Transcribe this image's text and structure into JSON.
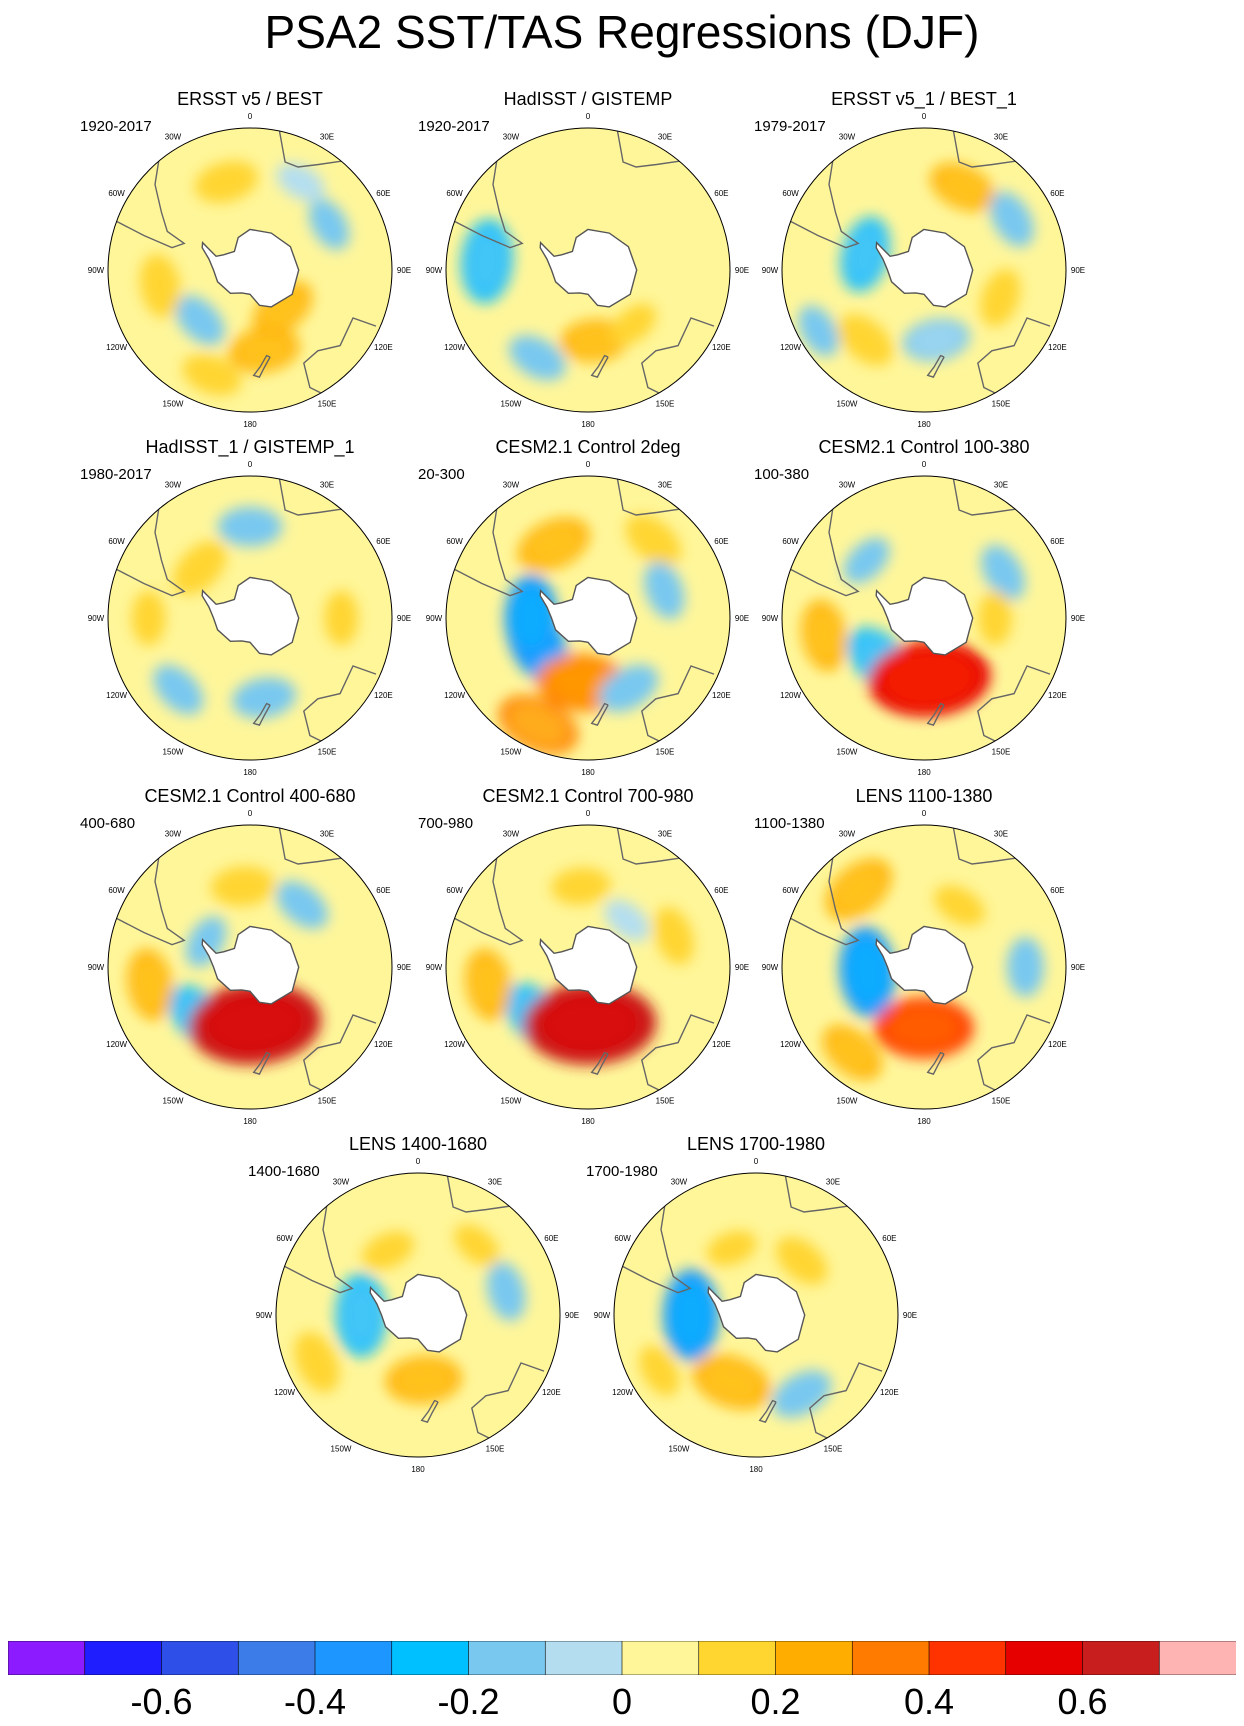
{
  "figure_title": "PSA2 SST/TAS Regressions (DJF)",
  "map_labels": {
    "longitudes": [
      "0",
      "30E",
      "60E",
      "90E",
      "120E",
      "150E",
      "180",
      "150W",
      "120W",
      "90W",
      "60W",
      "30W"
    ]
  },
  "colorbar": {
    "colors": [
      "#8c1cff",
      "#1e1eff",
      "#2e50e8",
      "#3c7ce8",
      "#1e96ff",
      "#00c0ff",
      "#78c8f0",
      "#b4def0",
      "#fff69a",
      "#ffd530",
      "#ffae00",
      "#ff7b00",
      "#ff3300",
      "#e60000",
      "#c81e1e",
      "#ffb4b4"
    ],
    "levels": [
      -0.7,
      -0.6,
      -0.5,
      -0.4,
      -0.3,
      -0.2,
      -0.1,
      0,
      0.1,
      0.2,
      0.3,
      0.4,
      0.5,
      0.6,
      0.7
    ],
    "tick_labels": [
      "-0.6",
      "-0.4",
      "-0.2",
      "0",
      "0.2",
      "0.4",
      "0.6"
    ],
    "tick_values": [
      -0.6,
      -0.4,
      -0.2,
      0,
      0.2,
      0.4,
      0.6
    ]
  },
  "chart_data": [
    {
      "type": "heatmap",
      "title": "ERSST v5 / BEST",
      "period": "1920-2017",
      "anomalies": [
        {
          "lon": -15,
          "lat": -45,
          "value": 0.18
        },
        {
          "lon": -135,
          "lat": -55,
          "value": -0.15
        },
        {
          "lon": -100,
          "lat": -45,
          "value": 0.18
        },
        {
          "lon": 170,
          "lat": -50,
          "value": 0.22
        },
        {
          "lon": 140,
          "lat": -65,
          "value": 0.2
        },
        {
          "lon": -160,
          "lat": -35,
          "value": 0.16
        },
        {
          "lon": 60,
          "lat": -45,
          "value": -0.12
        },
        {
          "lon": 30,
          "lat": -40,
          "value": -0.1
        }
      ]
    },
    {
      "type": "heatmap",
      "title": "HadISST / GISTEMP",
      "period": "1920-2017",
      "anomalies": [
        {
          "lon": -85,
          "lat": -40,
          "value": -0.3
        },
        {
          "lon": 175,
          "lat": -55,
          "value": 0.2
        },
        {
          "lon": -150,
          "lat": -40,
          "value": -0.16
        },
        {
          "lon": 140,
          "lat": -55,
          "value": 0.1
        },
        {
          "lon": 0,
          "lat": -60,
          "value": 0.08
        },
        {
          "lon": 90,
          "lat": -40,
          "value": 0.08
        }
      ]
    },
    {
      "type": "heatmap",
      "title": "ERSST v5_1 / BEST_1",
      "period": "1979-2017",
      "anomalies": [
        {
          "lon": 25,
          "lat": -45,
          "value": 0.2
        },
        {
          "lon": 60,
          "lat": -40,
          "value": -0.15
        },
        {
          "lon": -75,
          "lat": -60,
          "value": -0.25
        },
        {
          "lon": 170,
          "lat": -55,
          "value": -0.2
        },
        {
          "lon": -140,
          "lat": -45,
          "value": 0.18
        },
        {
          "lon": 110,
          "lat": -50,
          "value": 0.15
        },
        {
          "lon": -120,
          "lat": -30,
          "value": -0.12
        }
      ]
    },
    {
      "type": "heatmap",
      "title": "HadISST_1 / GISTEMP_1",
      "period": "1980-2017",
      "anomalies": [
        {
          "lon": 0,
          "lat": -45,
          "value": -0.18
        },
        {
          "lon": -45,
          "lat": -55,
          "value": 0.18
        },
        {
          "lon": 170,
          "lat": -50,
          "value": -0.18
        },
        {
          "lon": -135,
          "lat": -40,
          "value": -0.15
        },
        {
          "lon": 90,
          "lat": -45,
          "value": 0.12
        },
        {
          "lon": -90,
          "lat": -40,
          "value": 0.12
        }
      ]
    },
    {
      "type": "heatmap",
      "title": "CESM2.1 Control 2deg",
      "period": "20-300",
      "anomalies": [
        {
          "lon": -25,
          "lat": -50,
          "value": 0.25
        },
        {
          "lon": -115,
          "lat": -62,
          "value": -0.32
        },
        {
          "lon": -90,
          "lat": -62,
          "value": -0.32
        },
        {
          "lon": -175,
          "lat": -58,
          "value": 0.35
        },
        {
          "lon": -155,
          "lat": -32,
          "value": 0.3
        },
        {
          "lon": 150,
          "lat": -50,
          "value": -0.18
        },
        {
          "lon": 40,
          "lat": -40,
          "value": 0.18
        },
        {
          "lon": 70,
          "lat": -50,
          "value": -0.15
        }
      ]
    },
    {
      "type": "heatmap",
      "title": "CESM2.1 Control 100-380",
      "period": "100-380",
      "anomalies": [
        {
          "lon": -135,
          "lat": -60,
          "value": -0.28
        },
        {
          "lon": 175,
          "lat": -60,
          "value": 0.55
        },
        {
          "lon": -100,
          "lat": -40,
          "value": 0.22
        },
        {
          "lon": 60,
          "lat": -45,
          "value": -0.15
        },
        {
          "lon": 90,
          "lat": -55,
          "value": 0.12
        },
        {
          "lon": -45,
          "lat": -50,
          "value": -0.12
        }
      ]
    },
    {
      "type": "heatmap",
      "title": "CESM2.1 Control 400-680",
      "period": "400-680",
      "anomalies": [
        {
          "lon": -5,
          "lat": -50,
          "value": 0.18
        },
        {
          "lon": -135,
          "lat": -55,
          "value": -0.25
        },
        {
          "lon": -100,
          "lat": -40,
          "value": 0.22
        },
        {
          "lon": 175,
          "lat": -62,
          "value": 0.62
        },
        {
          "lon": 40,
          "lat": -50,
          "value": -0.15
        },
        {
          "lon": -60,
          "lat": -65,
          "value": -0.12
        }
      ]
    },
    {
      "type": "heatmap",
      "title": "CESM2.1 Control 700-980",
      "period": "700-980",
      "anomalies": [
        {
          "lon": -5,
          "lat": -50,
          "value": 0.15
        },
        {
          "lon": -135,
          "lat": -55,
          "value": -0.28
        },
        {
          "lon": -100,
          "lat": -40,
          "value": 0.22
        },
        {
          "lon": 178,
          "lat": -62,
          "value": 0.62
        },
        {
          "lon": 70,
          "lat": -45,
          "value": 0.15
        },
        {
          "lon": 40,
          "lat": -60,
          "value": -0.1
        }
      ]
    },
    {
      "type": "heatmap",
      "title": "LENS 1100-1380",
      "period": "1100-1380",
      "anomalies": [
        {
          "lon": -40,
          "lat": -40,
          "value": 0.25
        },
        {
          "lon": -95,
          "lat": -62,
          "value": -0.35
        },
        {
          "lon": 180,
          "lat": -60,
          "value": 0.4
        },
        {
          "lon": -140,
          "lat": -35,
          "value": 0.2
        },
        {
          "lon": 90,
          "lat": -40,
          "value": -0.15
        },
        {
          "lon": 30,
          "lat": -55,
          "value": 0.12
        }
      ]
    },
    {
      "type": "heatmap",
      "title": "LENS 1400-1680",
      "period": "1400-1680",
      "anomalies": [
        {
          "lon": -90,
          "lat": -62,
          "value": -0.3
        },
        {
          "lon": -115,
          "lat": -35,
          "value": 0.18
        },
        {
          "lon": 175,
          "lat": -58,
          "value": 0.25
        },
        {
          "lon": 75,
          "lat": -45,
          "value": -0.15
        },
        {
          "lon": -25,
          "lat": -55,
          "value": 0.12
        },
        {
          "lon": 40,
          "lat": -45,
          "value": 0.1
        }
      ]
    },
    {
      "type": "heatmap",
      "title": "LENS 1700-1980",
      "period": "1700-1980",
      "anomalies": [
        {
          "lon": -90,
          "lat": -58,
          "value": -0.35
        },
        {
          "lon": -160,
          "lat": -55,
          "value": 0.28
        },
        {
          "lon": 150,
          "lat": -45,
          "value": -0.18
        },
        {
          "lon": 40,
          "lat": -55,
          "value": 0.15
        },
        {
          "lon": -20,
          "lat": -55,
          "value": 0.1
        },
        {
          "lon": -120,
          "lat": -35,
          "value": 0.12
        }
      ]
    }
  ]
}
